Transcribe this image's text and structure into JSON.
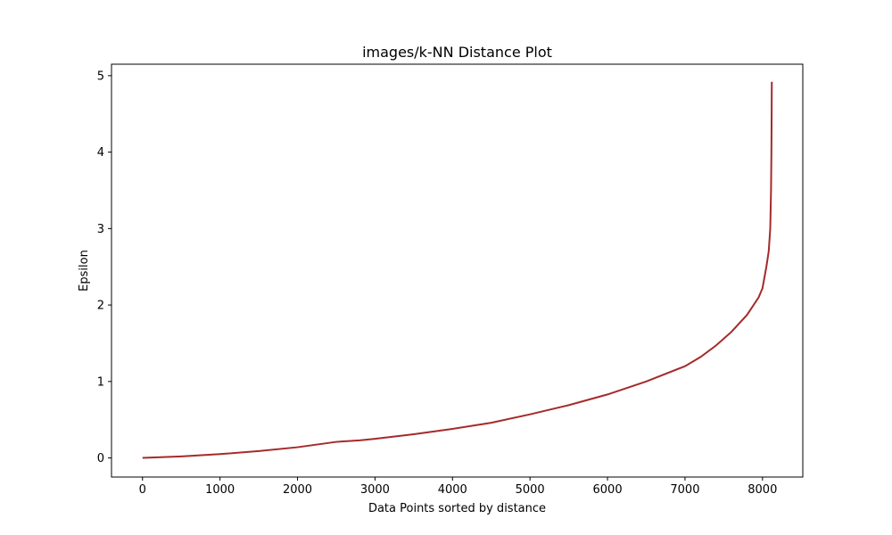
{
  "chart_data": {
    "type": "line",
    "title": "images/k-NN Distance Plot",
    "xlabel": "Data Points sorted by distance",
    "ylabel": "Epsilon",
    "xlim": [
      -400,
      8520
    ],
    "ylim": [
      -0.25,
      5.15
    ],
    "xticks": [
      0,
      1000,
      2000,
      3000,
      4000,
      5000,
      6000,
      7000,
      8000
    ],
    "yticks": [
      0,
      1,
      2,
      3,
      4,
      5
    ],
    "grid": false,
    "line_color": "#a52a2a",
    "series": [
      {
        "x": [
          0,
          500,
          1000,
          1500,
          2000,
          2500,
          2800,
          3000,
          3500,
          4000,
          4500,
          5000,
          5500,
          6000,
          6500,
          7000,
          7200,
          7400,
          7600,
          7800,
          7950,
          8000,
          8050,
          8080,
          8100,
          8110,
          8115,
          8118,
          8120
        ],
        "y": [
          0.0,
          0.02,
          0.05,
          0.09,
          0.14,
          0.21,
          0.23,
          0.25,
          0.31,
          0.38,
          0.46,
          0.57,
          0.69,
          0.83,
          1.0,
          1.2,
          1.32,
          1.47,
          1.65,
          1.87,
          2.1,
          2.22,
          2.5,
          2.7,
          3.0,
          3.5,
          4.0,
          4.5,
          4.92
        ]
      }
    ]
  }
}
